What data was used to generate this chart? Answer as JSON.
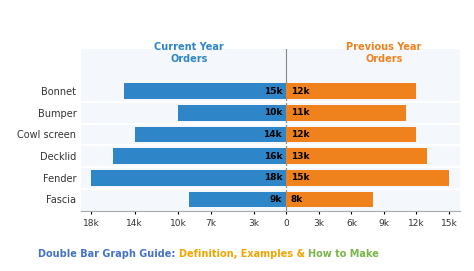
{
  "categories": [
    "Fascia",
    "Fender",
    "Decklid",
    "Cowl screen",
    "Bumper",
    "Bonnet"
  ],
  "current_year": [
    9,
    18,
    16,
    14,
    10,
    15
  ],
  "previous_year": [
    8,
    15,
    13,
    12,
    11,
    12
  ],
  "blue_color": "#2E86C8",
  "orange_color": "#F0821E",
  "bg_color": "#FFFFFF",
  "panel_bg": "#F4F7FB",
  "current_label": "Current Year\nOrders",
  "previous_label": "Previous Year\nOrders",
  "title_part1": "Double Bar Graph Guide: ",
  "title_part2": "Definition, Examples & ",
  "title_part3": "How to Make",
  "title_color1": "#4472C4",
  "title_color2": "#F0A500",
  "title_color3": "#7AB648",
  "x_tick_vals": [
    -18,
    -14,
    -10,
    -7,
    -3,
    0,
    3,
    6,
    9,
    12,
    15
  ],
  "x_tick_labels": [
    "18k",
    "14k",
    "10k",
    "7k",
    "3k",
    "0",
    "3k",
    "6k",
    "9k",
    "12k",
    "15k"
  ],
  "xlim_left": -19,
  "xlim_right": 16,
  "bar_height": 0.72
}
